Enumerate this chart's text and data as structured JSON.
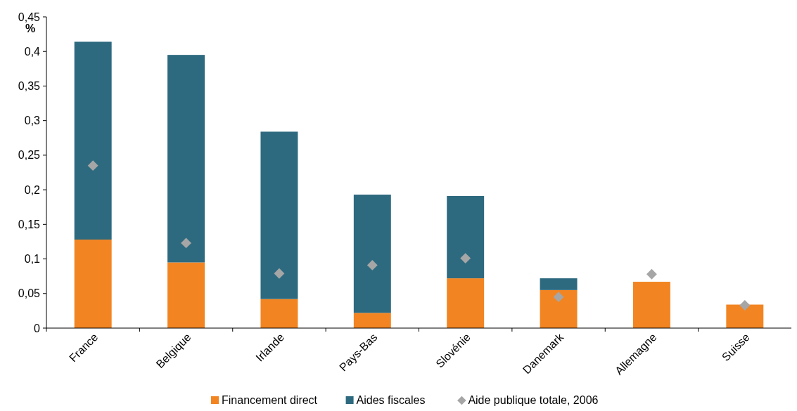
{
  "chart_data": {
    "type": "bar",
    "ylabel": "%",
    "stacked": true,
    "legend": "bottom",
    "grid": false,
    "categories": [
      "France",
      "Belgique",
      "Irlande",
      "Pays-Bas",
      "Slovénie",
      "Danemark",
      "Allemagne",
      "Suisse"
    ],
    "series": [
      {
        "name": "Financement direct",
        "color": "#f28522",
        "values": [
          0.128,
          0.095,
          0.042,
          0.022,
          0.072,
          0.055,
          0.067,
          0.034
        ]
      },
      {
        "name": "Aides fiscales",
        "color": "#2e6a7f",
        "values": [
          0.286,
          0.3,
          0.242,
          0.171,
          0.119,
          0.017,
          null,
          null
        ]
      },
      {
        "name": "Aide publique totale, 2006",
        "type": "scatter",
        "marker": "diamond",
        "color": "#a6a6a6",
        "values": [
          0.235,
          0.123,
          0.079,
          0.091,
          0.101,
          0.045,
          0.078,
          0.033
        ]
      }
    ],
    "ylim": [
      0,
      0.45
    ],
    "yticks": [
      0,
      {
        "value": 0.05,
        "label": "0,05"
      },
      {
        "value": 0.1,
        "label": "0,1"
      },
      {
        "value": 0.15,
        "label": "0,15"
      },
      {
        "value": 0.2,
        "label": "0,2"
      },
      {
        "value": 0.25,
        "label": "0,25"
      },
      {
        "value": 0.3,
        "label": "0,3"
      },
      {
        "value": 0.35,
        "label": "0,35"
      },
      {
        "value": 0.4,
        "label": "0,4"
      },
      {
        "value": 0.45,
        "label": "0,45"
      }
    ]
  }
}
